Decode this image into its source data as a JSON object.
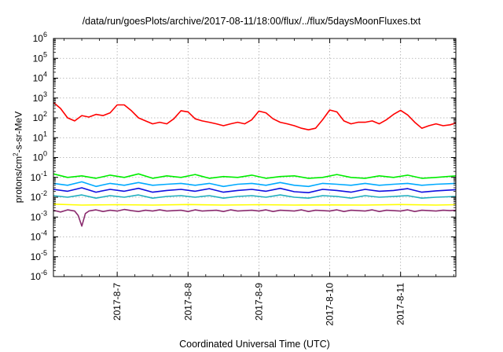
{
  "chart_data": {
    "type": "line",
    "title": "/data/run/goesPlots/archive/2017-08-11/18:00/flux/../flux/5daysMoonFluxes.txt",
    "xlabel": "Coordinated Universal Time (UTC)",
    "ylabel_main": "protons/cm",
    "ylabel_sup": "2",
    "ylabel_rest": "-s-sr-MeV",
    "y_scale": "log",
    "ylim": [
      1e-06,
      1000000
    ],
    "y_ticks": [
      {
        "exp": "6",
        "value": 1000000
      },
      {
        "exp": "5",
        "value": 100000
      },
      {
        "exp": "4",
        "value": 10000
      },
      {
        "exp": "3",
        "value": 1000
      },
      {
        "exp": "2",
        "value": 100
      },
      {
        "exp": "1",
        "value": 10
      },
      {
        "exp": "0",
        "value": 1
      },
      {
        "exp": "-1",
        "value": 0.1
      },
      {
        "exp": "-2",
        "value": 0.01
      },
      {
        "exp": "-3",
        "value": 0.001
      },
      {
        "exp": "-4",
        "value": 0.0001
      },
      {
        "exp": "-5",
        "value": 1e-05
      },
      {
        "exp": "-6",
        "value": 1e-06
      }
    ],
    "y_tick_base": "10",
    "xlim": [
      6.1,
      11.78
    ],
    "x_ticks": [
      {
        "label": "2017-8-7",
        "value": 7
      },
      {
        "label": "2017-8-8",
        "value": 8
      },
      {
        "label": "2017-8-9",
        "value": 9
      },
      {
        "label": "2017-8-10",
        "value": 10
      },
      {
        "label": "2017-8-11",
        "value": 11
      }
    ],
    "grid": true,
    "legend": "none",
    "series": [
      {
        "color": "#ff0000",
        "x": [
          6.1,
          6.2,
          6.3,
          6.4,
          6.5,
          6.6,
          6.7,
          6.8,
          6.9,
          7.0,
          7.1,
          7.2,
          7.3,
          7.4,
          7.5,
          7.6,
          7.7,
          7.8,
          7.9,
          8.0,
          8.1,
          8.2,
          8.3,
          8.4,
          8.5,
          8.6,
          8.7,
          8.8,
          8.9,
          9.0,
          9.1,
          9.2,
          9.3,
          9.4,
          9.5,
          9.6,
          9.7,
          9.8,
          9.9,
          10.0,
          10.1,
          10.2,
          10.3,
          10.4,
          10.5,
          10.6,
          10.7,
          10.8,
          10.9,
          11.0,
          11.1,
          11.2,
          11.3,
          11.4,
          11.5,
          11.6,
          11.7,
          11.78
        ],
        "y": [
          600,
          300,
          100,
          70,
          130,
          110,
          150,
          130,
          180,
          450,
          450,
          230,
          100,
          70,
          50,
          60,
          50,
          90,
          230,
          200,
          90,
          70,
          60,
          50,
          40,
          50,
          60,
          50,
          80,
          220,
          180,
          90,
          60,
          50,
          40,
          30,
          25,
          30,
          80,
          250,
          200,
          70,
          50,
          60,
          60,
          70,
          50,
          80,
          150,
          240,
          140,
          60,
          30,
          40,
          50,
          40,
          45,
          55
        ]
      },
      {
        "color": "#00ee00",
        "x": [
          6.1,
          6.3,
          6.5,
          6.7,
          6.9,
          7.1,
          7.3,
          7.5,
          7.7,
          7.9,
          8.1,
          8.3,
          8.5,
          8.7,
          8.9,
          9.1,
          9.3,
          9.5,
          9.7,
          9.9,
          10.1,
          10.3,
          10.5,
          10.7,
          10.9,
          11.1,
          11.3,
          11.5,
          11.78
        ],
        "y": [
          0.15,
          0.1,
          0.12,
          0.09,
          0.13,
          0.1,
          0.15,
          0.09,
          0.12,
          0.1,
          0.14,
          0.09,
          0.11,
          0.1,
          0.13,
          0.09,
          0.11,
          0.12,
          0.09,
          0.1,
          0.14,
          0.1,
          0.09,
          0.12,
          0.1,
          0.13,
          0.09,
          0.1,
          0.12
        ]
      },
      {
        "color": "#00aaff",
        "x": [
          6.1,
          6.3,
          6.5,
          6.7,
          6.9,
          7.1,
          7.3,
          7.5,
          7.7,
          7.9,
          8.1,
          8.3,
          8.5,
          8.7,
          8.9,
          9.1,
          9.3,
          9.5,
          9.7,
          9.9,
          10.1,
          10.3,
          10.5,
          10.7,
          10.9,
          11.1,
          11.3,
          11.5,
          11.78
        ],
        "y": [
          0.05,
          0.04,
          0.06,
          0.035,
          0.05,
          0.04,
          0.055,
          0.04,
          0.045,
          0.05,
          0.04,
          0.05,
          0.035,
          0.045,
          0.05,
          0.04,
          0.055,
          0.04,
          0.035,
          0.05,
          0.045,
          0.04,
          0.05,
          0.04,
          0.045,
          0.05,
          0.04,
          0.045,
          0.05
        ]
      },
      {
        "color": "#1010e0",
        "x": [
          6.1,
          6.3,
          6.5,
          6.7,
          6.9,
          7.1,
          7.3,
          7.5,
          7.7,
          7.9,
          8.1,
          8.3,
          8.5,
          8.7,
          8.9,
          9.1,
          9.3,
          9.5,
          9.7,
          9.9,
          10.1,
          10.3,
          10.5,
          10.7,
          10.9,
          11.1,
          11.3,
          11.5,
          11.78
        ],
        "y": [
          0.025,
          0.02,
          0.03,
          0.018,
          0.025,
          0.02,
          0.028,
          0.018,
          0.022,
          0.025,
          0.02,
          0.027,
          0.018,
          0.022,
          0.025,
          0.02,
          0.028,
          0.019,
          0.017,
          0.025,
          0.022,
          0.018,
          0.025,
          0.02,
          0.022,
          0.027,
          0.018,
          0.021,
          0.024
        ]
      },
      {
        "color": "#20b0c0",
        "x": [
          6.1,
          6.3,
          6.5,
          6.7,
          6.9,
          7.1,
          7.3,
          7.5,
          7.7,
          7.9,
          8.1,
          8.3,
          8.5,
          8.7,
          8.9,
          9.1,
          9.3,
          9.5,
          9.7,
          9.9,
          10.1,
          10.3,
          10.5,
          10.7,
          10.9,
          11.1,
          11.3,
          11.5,
          11.78
        ],
        "y": [
          0.012,
          0.01,
          0.013,
          0.009,
          0.012,
          0.01,
          0.013,
          0.009,
          0.011,
          0.012,
          0.01,
          0.012,
          0.009,
          0.011,
          0.012,
          0.01,
          0.013,
          0.01,
          0.009,
          0.012,
          0.011,
          0.009,
          0.012,
          0.01,
          0.011,
          0.012,
          0.009,
          0.01,
          0.011
        ]
      },
      {
        "color": "#ffff00",
        "x": [
          6.1,
          6.5,
          7.0,
          7.5,
          8.0,
          8.5,
          9.0,
          9.5,
          10.0,
          10.5,
          11.0,
          11.5,
          11.78
        ],
        "y": [
          0.0045,
          0.004,
          0.0042,
          0.004,
          0.0043,
          0.004,
          0.0042,
          0.004,
          0.0041,
          0.004,
          0.0043,
          0.004,
          0.0042
        ]
      },
      {
        "color": "#8a2b6e",
        "x": [
          6.1,
          6.2,
          6.3,
          6.4,
          6.45,
          6.5,
          6.55,
          6.6,
          6.7,
          6.8,
          6.9,
          7.0,
          7.1,
          7.2,
          7.3,
          7.4,
          7.5,
          7.6,
          7.7,
          7.8,
          7.9,
          8.0,
          8.1,
          8.2,
          8.3,
          8.4,
          8.5,
          8.6,
          8.7,
          8.8,
          8.9,
          9.0,
          9.1,
          9.2,
          9.3,
          9.4,
          9.5,
          9.6,
          9.7,
          9.8,
          9.9,
          10.0,
          10.1,
          10.2,
          10.3,
          10.4,
          10.5,
          10.6,
          10.7,
          10.8,
          10.9,
          11.0,
          11.1,
          11.2,
          11.3,
          11.4,
          11.5,
          11.6,
          11.7,
          11.78
        ],
        "y": [
          0.0022,
          0.0018,
          0.0023,
          0.002,
          0.0012,
          0.00035,
          0.0015,
          0.002,
          0.0023,
          0.0019,
          0.0022,
          0.002,
          0.0024,
          0.0021,
          0.0019,
          0.0022,
          0.002,
          0.0023,
          0.002,
          0.0021,
          0.0022,
          0.0019,
          0.0023,
          0.002,
          0.0021,
          0.0022,
          0.0019,
          0.0023,
          0.002,
          0.0021,
          0.0022,
          0.002,
          0.0023,
          0.0019,
          0.0022,
          0.0021,
          0.002,
          0.0023,
          0.0019,
          0.0022,
          0.0021,
          0.002,
          0.0023,
          0.0019,
          0.0022,
          0.0021,
          0.002,
          0.0023,
          0.0019,
          0.0022,
          0.0021,
          0.002,
          0.0023,
          0.0019,
          0.0022,
          0.0021,
          0.002,
          0.0022,
          0.0021,
          0.0022
        ]
      }
    ]
  }
}
